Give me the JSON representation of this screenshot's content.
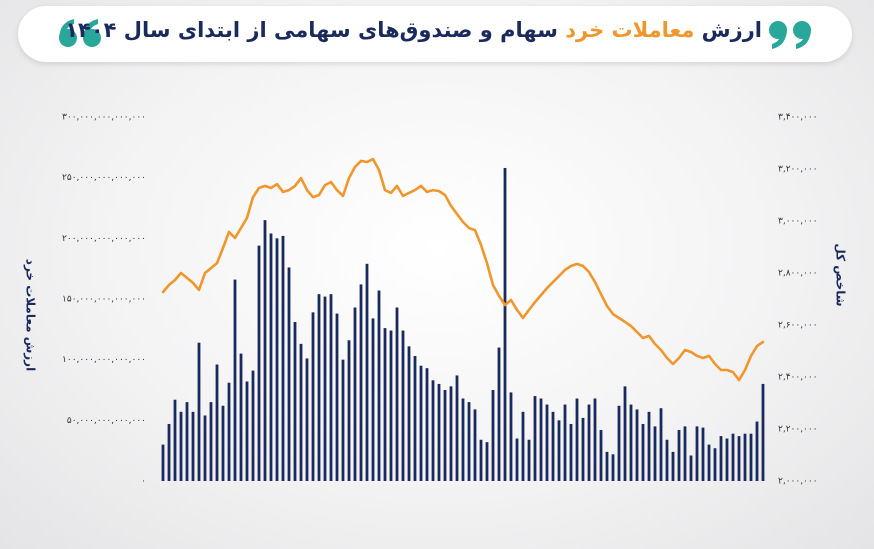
{
  "title_start": "ارزش",
  "title_highlight": "معاملات خرد",
  "title_end": "سهام و صندوق‌های سهامی از ابتدای سال ۱۴۰۴",
  "chart_data": {
    "type": "bar",
    "ylabel": "ارزش معاملات خرد",
    "y2label": "شاخص کل",
    "grid": false,
    "categories": [
      null,
      null,
      null,
      null,
      null,
      null,
      null,
      null,
      null,
      null,
      null,
      null,
      null,
      null,
      null,
      null,
      null,
      null,
      null,
      null,
      null,
      null,
      null,
      null,
      null,
      null,
      null,
      null,
      null,
      null,
      null,
      null,
      null,
      null,
      null,
      null,
      null,
      null,
      null,
      null,
      null,
      null,
      null,
      null,
      null,
      null,
      null,
      null,
      null,
      null,
      null,
      null,
      null,
      null,
      null,
      null,
      null,
      null,
      null,
      null,
      null,
      null,
      null,
      null,
      null,
      null,
      null,
      null,
      null,
      null,
      null,
      null,
      null,
      null,
      null,
      null,
      null,
      null,
      null,
      null,
      null,
      null,
      null,
      null,
      null,
      null,
      null,
      null,
      null,
      null,
      null,
      null,
      null,
      null,
      null,
      null,
      null,
      null,
      null,
      null,
      null
    ],
    "ylim": [
      0,
      300000000000000
    ],
    "yticks": [
      {
        "value": 0,
        "label": "۰"
      },
      {
        "value": 50000000000000,
        "label": "۵۰,۰۰۰,۰۰۰,۰۰۰,۰۰۰"
      },
      {
        "value": 100000000000000,
        "label": "۱۰۰,۰۰۰,۰۰۰,۰۰۰,۰۰۰"
      },
      {
        "value": 150000000000000,
        "label": "۱۵۰,۰۰۰,۰۰۰,۰۰۰,۰۰۰"
      },
      {
        "value": 200000000000000,
        "label": "۲۰۰,۰۰۰,۰۰۰,۰۰۰,۰۰۰"
      },
      {
        "value": 250000000000000,
        "label": "۲۵۰,۰۰۰,۰۰۰,۰۰۰,۰۰۰"
      },
      {
        "value": 300000000000000,
        "label": "۳۰۰,۰۰۰,۰۰۰,۰۰۰,۰۰۰"
      }
    ],
    "y2lim": [
      2000000,
      3400000
    ],
    "y2ticks": [
      {
        "value": 2000000,
        "label": "۲,۰۰۰,۰۰۰"
      },
      {
        "value": 2200000,
        "label": "۲,۲۰۰,۰۰۰"
      },
      {
        "value": 2400000,
        "label": "۲,۴۰۰,۰۰۰"
      },
      {
        "value": 2600000,
        "label": "۲,۶۰۰,۰۰۰"
      },
      {
        "value": 2800000,
        "label": "۲,۸۰۰,۰۰۰"
      },
      {
        "value": 3000000,
        "label": "۳,۰۰۰,۰۰۰"
      },
      {
        "value": 3200000,
        "label": "۳,۲۰۰,۰۰۰"
      },
      {
        "value": 3400000,
        "label": "۳,۴۰۰,۰۰۰"
      }
    ],
    "series": [
      {
        "type": "bar",
        "color": "#1b2a5c",
        "values": [
          30000000000000.0,
          47000000000000.0,
          67000000000000.0,
          57000000000000.0,
          65000000000000.0,
          57000000000000.0,
          114000000000000.0,
          54000000000000.0,
          65000000000000.0,
          96000000000000.0,
          62000000000000.0,
          81000000000000.0,
          166000000000000.0,
          105000000000000.0,
          82000000000000.0,
          91000000000000.0,
          194000000000000.0,
          215000000000000.0,
          204000000000000.0,
          200000000000000.0,
          202000000000000.0,
          176000000000000.0,
          131000000000000.0,
          113000000000000.0,
          101000000000000.0,
          139000000000000.0,
          154000000000000.0,
          152000000000000.0,
          154000000000000.0,
          138000000000000.0,
          100000000000000.0,
          116000000000000.0,
          143000000000000.0,
          162000000000000.0,
          179000000000000.0,
          134000000000000.0,
          157000000000000.0,
          126000000000000.0,
          124000000000000.0,
          143000000000000.0,
          124000000000000.0,
          111000000000000.0,
          103000000000000.0,
          95000000000000.0,
          93000000000000.0,
          83000000000000.0,
          80000000000000.0,
          75000000000000.0,
          78000000000000.0,
          87000000000000.0,
          68000000000000.0,
          65000000000000.0,
          59000000000000.0,
          34000000000000.0,
          32000000000000.0,
          75000000000000.0,
          110000000000000.0,
          258000000000000.0,
          73000000000000.0,
          35000000000000.0,
          57000000000000.0,
          34000000000000.0,
          70000000000000.0,
          68000000000000.0,
          63000000000000.0,
          57000000000000.0,
          50000000000000.0,
          63000000000000.0,
          47000000000000.0,
          68000000000000.0,
          52000000000000.0,
          63000000000000.0,
          68000000000000.0,
          42000000000000.0,
          24000000000000.0,
          22000000000000.0,
          62000000000000.0,
          78000000000000.0,
          63000000000000.0,
          59000000000000.0,
          47000000000000.0,
          57000000000000.0,
          45000000000000.0,
          60000000000000.0,
          34000000000000.0,
          24000000000000.0,
          42000000000000.0,
          45000000000000.0,
          21000000000000.0,
          45000000000000.0,
          44000000000000.0,
          30000000000000.0,
          27000000000000.0,
          37000000000000.0,
          35000000000000.0,
          39000000000000.0,
          37000000000000.0,
          39000000000000.0,
          39000000000000.0,
          49000000000000.0,
          80000000000000.0
        ]
      },
      {
        "type": "line",
        "axis": "y2",
        "color": "#f0962b",
        "values": [
          2727000,
          2754000,
          2773000,
          2800000,
          2781000,
          2762000,
          2735000,
          2800000,
          2819000,
          2838000,
          2896000,
          2958000,
          2935000,
          2973000,
          3012000,
          3092000,
          3127000,
          3135000,
          3127000,
          3142000,
          3112000,
          3119000,
          3135000,
          3165000,
          3119000,
          3092000,
          3100000,
          3138000,
          3150000,
          3119000,
          3096000,
          3165000,
          3208000,
          3231000,
          3227000,
          3238000,
          3196000,
          3119000,
          3108000,
          3135000,
          3096000,
          3108000,
          3119000,
          3135000,
          3112000,
          3119000,
          3115000,
          3100000,
          3058000,
          3027000,
          2996000,
          2973000,
          2965000,
          2908000,
          2838000,
          2754000,
          2712000,
          2677000,
          2696000,
          2658000,
          2627000,
          2658000,
          2688000,
          2715000,
          2742000,
          2765000,
          2788000,
          2812000,
          2827000,
          2835000,
          2827000,
          2804000,
          2765000,
          2719000,
          2673000,
          2642000,
          2627000,
          2612000,
          2596000,
          2573000,
          2550000,
          2558000,
          2527000,
          2504000,
          2473000,
          2450000,
          2473000,
          2504000,
          2496000,
          2481000,
          2473000,
          2481000,
          2450000,
          2427000,
          2427000,
          2419000,
          2388000,
          2427000,
          2481000,
          2519000,
          2535000
        ]
      }
    ]
  }
}
